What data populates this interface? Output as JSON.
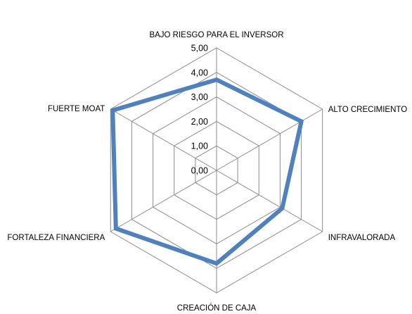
{
  "chart_data": {
    "type": "radar",
    "categories": [
      "BAJO RIESGO  PARA EL INVERSOR",
      "ALTO CRECIMIENTO",
      "INFRAVALORADA",
      "CREACIÓN DE CAJA",
      "FORTALEZA FINANCIERA",
      "FUERTE MOAT"
    ],
    "series": [
      {
        "values": [
          3.7,
          4.0,
          3.1,
          3.8,
          4.75,
          4.9
        ],
        "color": "#4F81BD"
      }
    ],
    "ticks": [
      "0,00",
      "1,00",
      "2,00",
      "3,00",
      "4,00",
      "5,00"
    ],
    "rlim": [
      0,
      5
    ],
    "grid": true,
    "legend": "none"
  }
}
